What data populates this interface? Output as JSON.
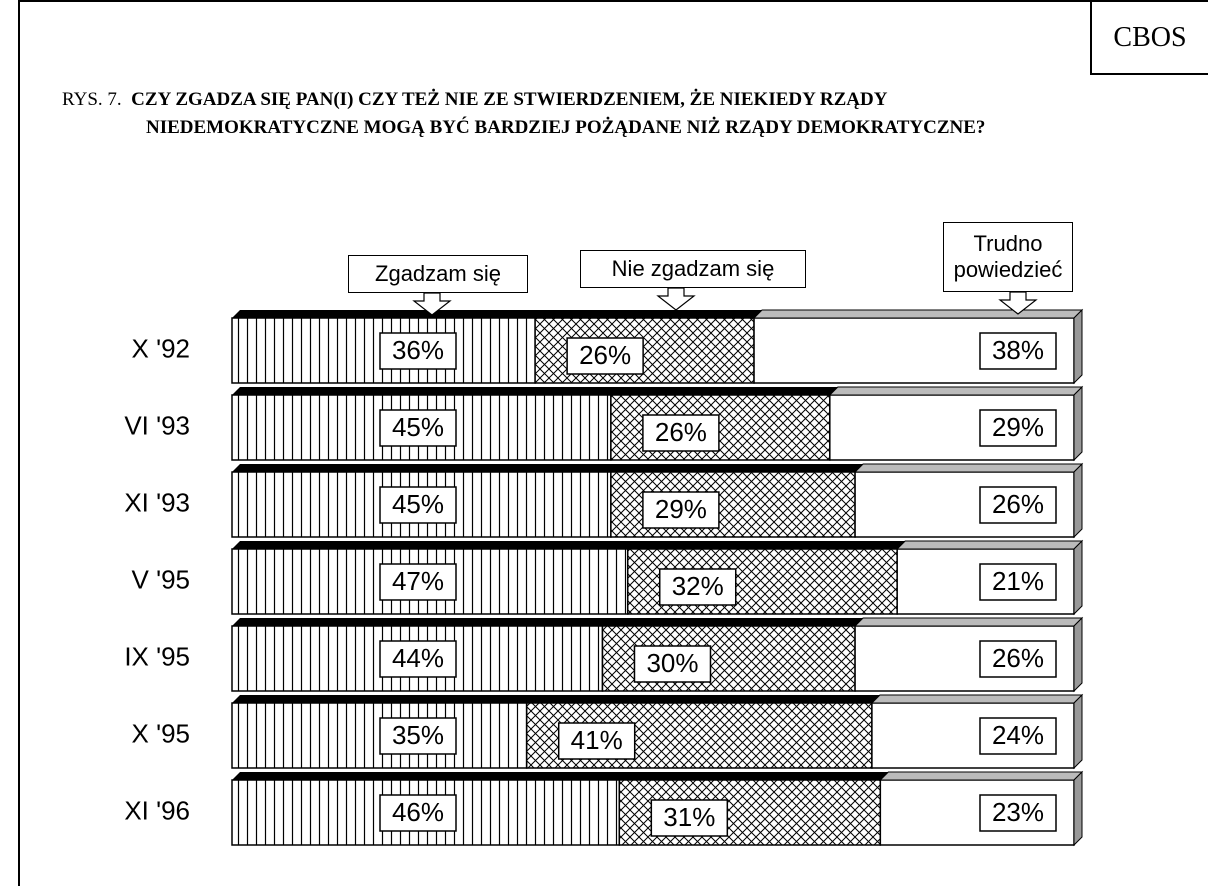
{
  "header": {
    "source": "CBOS"
  },
  "chart_data": {
    "type": "stacked-bar-horizontal",
    "figure_label": "RYS. 7.",
    "title": "CZY ZGADZA SIĘ PAN(I) CZY TEŻ NIE ZE STWIERDZENIEM, ŻE NIEKIEDY RZĄDY NIEDEMOKRATYCZNE MOGĄ BYĆ BARDZIEJ POŻĄDANE NIŻ RZĄDY DEMOKRATYCZNE?",
    "categories": [
      "X '92",
      "VI '93",
      "XI '93",
      "V '95",
      "IX '95",
      "X '95",
      "XI '96"
    ],
    "xlim": [
      0,
      100
    ],
    "series": [
      {
        "name": "Zgadzam się",
        "color": "#ffffff",
        "pattern": "vertical-lines",
        "values": [
          36,
          45,
          45,
          47,
          44,
          35,
          46
        ],
        "value_labels": [
          "36%",
          "45%",
          "45%",
          "47%",
          "44%",
          "35%",
          "46%"
        ]
      },
      {
        "name": "Nie zgadzam się",
        "color": "#ffffff",
        "pattern": "cross-hatch",
        "values": [
          26,
          26,
          29,
          32,
          30,
          41,
          31
        ],
        "value_labels": [
          "26%",
          "26%",
          "29%",
          "32%",
          "30%",
          "41%",
          "31%"
        ]
      },
      {
        "name": "Trudno powiedzieć",
        "color": "#ffffff",
        "pattern": "none",
        "values": [
          38,
          29,
          26,
          21,
          26,
          24,
          23
        ],
        "value_labels": [
          "38%",
          "29%",
          "26%",
          "21%",
          "26%",
          "24%",
          "23%"
        ]
      }
    ]
  }
}
